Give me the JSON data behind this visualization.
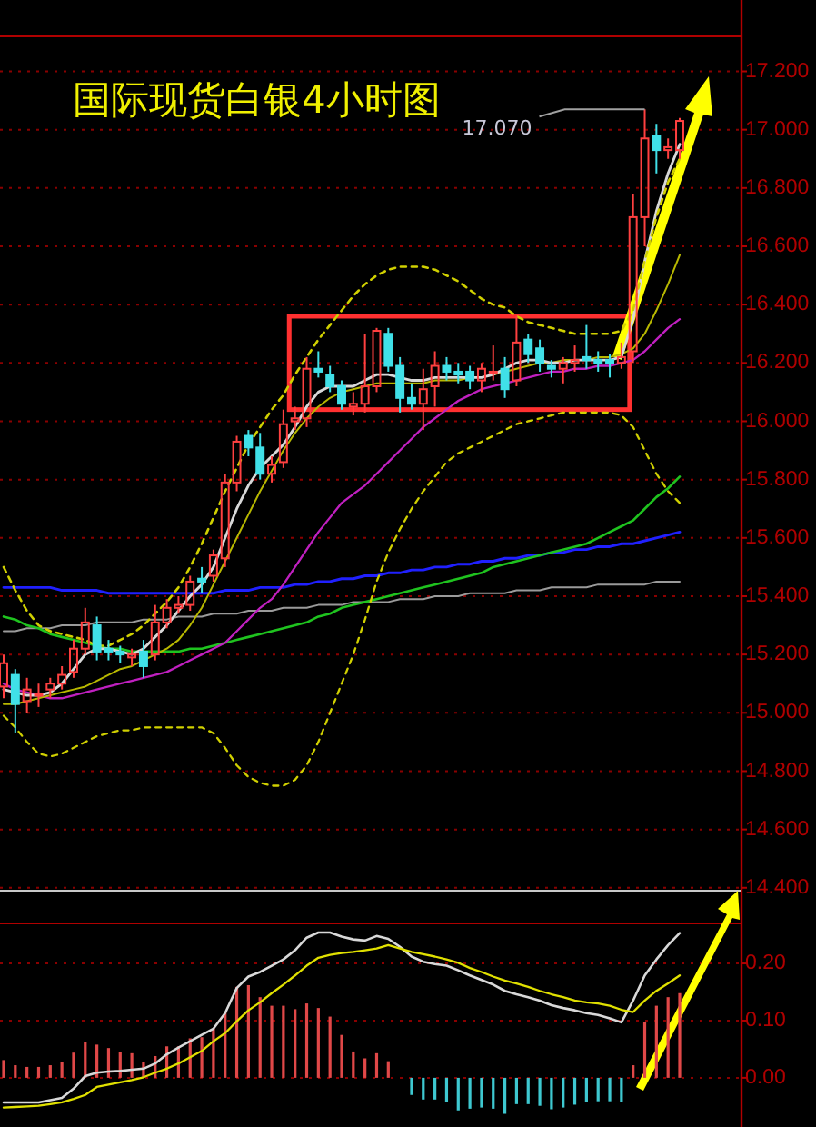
{
  "chart_data": [
    {
      "type": "candlestick",
      "title": "国际现货白银4小时图",
      "categories": [
        null,
        null,
        null,
        null,
        null,
        null,
        null,
        null,
        null,
        null,
        null,
        null,
        null,
        null,
        null,
        null,
        null,
        null,
        null,
        null,
        null,
        null,
        null,
        null,
        null,
        null,
        null,
        null,
        null,
        null,
        null,
        null,
        null,
        null,
        null,
        null,
        null,
        null,
        null,
        null,
        null,
        null,
        null,
        null,
        null,
        null,
        null,
        null,
        null,
        null,
        null,
        null,
        null,
        null,
        null,
        null,
        null,
        null,
        null
      ],
      "ohlc": [
        [
          15.09,
          15.2,
          15.05,
          15.17
        ],
        [
          15.13,
          15.15,
          14.93,
          15.03
        ],
        [
          15.04,
          15.12,
          15.0,
          15.08
        ],
        [
          15.06,
          15.1,
          15.02,
          15.065
        ],
        [
          15.08,
          15.12,
          15.05,
          15.1
        ],
        [
          15.1,
          15.16,
          15.08,
          15.13
        ],
        [
          15.14,
          15.25,
          15.12,
          15.22
        ],
        [
          15.22,
          15.36,
          15.2,
          15.31
        ],
        [
          15.3,
          15.33,
          15.18,
          15.21
        ],
        [
          15.22,
          15.25,
          15.18,
          15.21
        ],
        [
          15.21,
          15.23,
          15.17,
          15.2
        ],
        [
          15.19,
          15.22,
          15.16,
          15.2
        ],
        [
          15.21,
          15.25,
          15.12,
          15.16
        ],
        [
          15.2,
          15.37,
          15.18,
          15.31
        ],
        [
          15.31,
          15.39,
          15.29,
          15.36
        ],
        [
          15.36,
          15.4,
          15.34,
          15.37
        ],
        [
          15.37,
          15.47,
          15.35,
          15.45
        ],
        [
          15.46,
          15.5,
          15.41,
          15.45
        ],
        [
          15.47,
          15.56,
          15.45,
          15.54
        ],
        [
          15.53,
          15.82,
          15.5,
          15.79
        ],
        [
          15.79,
          15.95,
          15.76,
          15.93
        ],
        [
          15.95,
          15.97,
          15.88,
          15.91
        ],
        [
          15.91,
          15.96,
          15.8,
          15.82
        ],
        [
          15.82,
          15.88,
          15.79,
          15.85
        ],
        [
          15.86,
          16.04,
          15.84,
          15.99
        ],
        [
          16.0,
          16.05,
          15.97,
          16.01
        ],
        [
          16.01,
          16.22,
          15.98,
          16.18
        ],
        [
          16.18,
          16.24,
          16.15,
          16.17
        ],
        [
          16.16,
          16.19,
          16.1,
          16.12
        ],
        [
          16.12,
          16.14,
          16.04,
          16.06
        ],
        [
          16.05,
          16.1,
          16.02,
          16.06
        ],
        [
          16.06,
          16.3,
          16.03,
          16.12
        ],
        [
          16.12,
          16.32,
          16.1,
          16.31
        ],
        [
          16.3,
          16.32,
          16.17,
          16.19
        ],
        [
          16.19,
          16.22,
          16.03,
          16.08
        ],
        [
          16.08,
          16.13,
          16.04,
          16.06
        ],
        [
          16.06,
          16.18,
          15.97,
          16.11
        ],
        [
          16.12,
          16.24,
          16.05,
          16.19
        ],
        [
          16.19,
          16.22,
          16.14,
          16.17
        ],
        [
          16.17,
          16.2,
          16.13,
          16.16
        ],
        [
          16.17,
          16.19,
          16.11,
          16.14
        ],
        [
          16.14,
          16.2,
          16.1,
          16.18
        ],
        [
          16.17,
          16.26,
          16.14,
          16.17
        ],
        [
          16.18,
          16.22,
          16.08,
          16.11
        ],
        [
          16.14,
          16.36,
          16.12,
          16.27
        ],
        [
          16.28,
          16.3,
          16.2,
          16.23
        ],
        [
          16.25,
          16.28,
          16.17,
          16.2
        ],
        [
          16.19,
          16.21,
          16.15,
          16.18
        ],
        [
          16.18,
          16.22,
          16.13,
          16.2
        ],
        [
          16.2,
          16.26,
          16.17,
          16.21
        ],
        [
          16.22,
          16.33,
          16.18,
          16.21
        ],
        [
          16.21,
          16.24,
          16.17,
          16.2
        ],
        [
          16.21,
          16.23,
          16.15,
          16.2
        ],
        [
          16.2,
          16.27,
          16.18,
          16.22
        ],
        [
          16.24,
          16.78,
          16.2,
          16.7
        ],
        [
          16.7,
          17.07,
          16.6,
          16.97
        ],
        [
          16.98,
          17.02,
          16.85,
          16.93
        ],
        [
          16.93,
          16.97,
          16.9,
          16.94
        ],
        [
          16.93,
          17.04,
          16.9,
          17.03
        ]
      ],
      "series": [
        {
          "type": "line",
          "color": "#9a9a9a",
          "values": [
            15.28,
            15.28,
            15.29,
            15.29,
            15.29,
            15.3,
            15.3,
            15.3,
            15.31,
            15.31,
            15.31,
            15.31,
            15.32,
            15.32,
            15.32,
            15.33,
            15.33,
            15.33,
            15.34,
            15.34,
            15.34,
            15.35,
            15.35,
            15.35,
            15.36,
            15.36,
            15.36,
            15.37,
            15.37,
            15.37,
            15.38,
            15.38,
            15.38,
            15.38,
            15.39,
            15.39,
            15.39,
            15.4,
            15.4,
            15.4,
            15.41,
            15.41,
            15.41,
            15.41,
            15.42,
            15.42,
            15.42,
            15.43,
            15.43,
            15.43,
            15.43,
            15.44,
            15.44,
            15.44,
            15.44,
            15.44,
            15.45,
            15.45,
            15.45
          ]
        },
        {
          "type": "line",
          "color": "#2020ff",
          "values": [
            15.43,
            15.43,
            15.43,
            15.43,
            15.43,
            15.42,
            15.42,
            15.42,
            15.42,
            15.41,
            15.41,
            15.41,
            15.41,
            15.41,
            15.41,
            15.41,
            15.41,
            15.41,
            15.41,
            15.42,
            15.42,
            15.42,
            15.43,
            15.43,
            15.43,
            15.44,
            15.44,
            15.45,
            15.45,
            15.46,
            15.46,
            15.47,
            15.47,
            15.48,
            15.48,
            15.49,
            15.49,
            15.5,
            15.5,
            15.51,
            15.51,
            15.52,
            15.52,
            15.53,
            15.53,
            15.54,
            15.54,
            15.55,
            15.55,
            15.56,
            15.56,
            15.57,
            15.57,
            15.58,
            15.58,
            15.59,
            15.6,
            15.61,
            15.62
          ]
        },
        {
          "type": "line",
          "color": "#1fc31f",
          "values": [
            15.33,
            15.32,
            15.3,
            15.29,
            15.27,
            15.26,
            15.25,
            15.24,
            15.23,
            15.22,
            15.22,
            15.21,
            15.21,
            15.21,
            15.21,
            15.21,
            15.22,
            15.22,
            15.23,
            15.24,
            15.25,
            15.26,
            15.27,
            15.28,
            15.29,
            15.3,
            15.31,
            15.33,
            15.34,
            15.36,
            15.37,
            15.38,
            15.39,
            15.4,
            15.41,
            15.42,
            15.43,
            15.44,
            15.45,
            15.46,
            15.47,
            15.48,
            15.5,
            15.51,
            15.52,
            15.53,
            15.54,
            15.55,
            15.56,
            15.57,
            15.58,
            15.6,
            15.62,
            15.64,
            15.66,
            15.7,
            15.74,
            15.77,
            15.81
          ]
        },
        {
          "type": "line",
          "color": "#c020c0",
          "values": [
            15.1,
            15.08,
            15.07,
            15.06,
            15.05,
            15.05,
            15.06,
            15.07,
            15.08,
            15.09,
            15.1,
            15.11,
            15.12,
            15.13,
            15.14,
            15.16,
            15.18,
            15.2,
            15.22,
            15.24,
            15.28,
            15.32,
            15.36,
            15.39,
            15.44,
            15.5,
            15.56,
            15.62,
            15.67,
            15.72,
            15.75,
            15.78,
            15.82,
            15.86,
            15.9,
            15.94,
            15.98,
            16.01,
            16.04,
            16.07,
            16.09,
            16.11,
            16.12,
            16.13,
            16.14,
            16.15,
            16.16,
            16.17,
            16.17,
            16.18,
            16.18,
            16.19,
            16.19,
            16.2,
            16.21,
            16.24,
            16.28,
            16.32,
            16.35
          ]
        },
        {
          "type": "line",
          "color": "#b8b800",
          "values": [
            15.03,
            15.03,
            15.04,
            15.05,
            15.06,
            15.07,
            15.08,
            15.09,
            15.11,
            15.13,
            15.15,
            15.16,
            15.18,
            15.2,
            15.22,
            15.25,
            15.3,
            15.36,
            15.44,
            15.52,
            15.6,
            15.68,
            15.76,
            15.83,
            15.9,
            15.96,
            16.01,
            16.05,
            16.08,
            16.1,
            16.11,
            16.12,
            16.13,
            16.13,
            16.13,
            16.13,
            16.13,
            16.14,
            16.14,
            16.14,
            16.15,
            16.15,
            16.16,
            16.17,
            16.18,
            16.19,
            16.2,
            16.2,
            16.21,
            16.21,
            16.21,
            16.22,
            16.22,
            16.23,
            16.25,
            16.3,
            16.38,
            16.47,
            16.57
          ]
        },
        {
          "type": "line",
          "color": "#d8d8d8",
          "values": [
            15.08,
            15.07,
            15.06,
            15.06,
            15.07,
            15.1,
            15.15,
            15.2,
            15.22,
            15.22,
            15.21,
            15.2,
            15.22,
            15.26,
            15.3,
            15.35,
            15.4,
            15.44,
            15.5,
            15.6,
            15.7,
            15.78,
            15.84,
            15.88,
            15.92,
            15.98,
            16.05,
            16.1,
            16.12,
            16.12,
            16.12,
            16.14,
            16.16,
            16.16,
            16.15,
            16.14,
            16.14,
            16.15,
            16.15,
            16.15,
            16.15,
            16.15,
            16.16,
            16.18,
            16.2,
            16.21,
            16.21,
            16.2,
            16.2,
            16.21,
            16.21,
            16.21,
            16.21,
            16.22,
            16.35,
            16.55,
            16.72,
            16.85,
            16.95
          ]
        },
        {
          "type": "line",
          "color": "#d0d000",
          "line_style": "dashed",
          "values": [
            15.5,
            15.42,
            15.35,
            15.3,
            15.28,
            15.27,
            15.26,
            15.25,
            15.23,
            15.23,
            15.25,
            15.27,
            15.3,
            15.34,
            15.38,
            15.43,
            15.5,
            15.58,
            15.67,
            15.76,
            15.84,
            15.92,
            15.98,
            16.04,
            16.09,
            16.16,
            16.22,
            16.28,
            16.33,
            16.38,
            16.43,
            16.47,
            16.5,
            16.52,
            16.53,
            16.53,
            16.53,
            16.52,
            16.5,
            16.48,
            16.45,
            16.42,
            16.4,
            16.39,
            16.36,
            16.34,
            16.33,
            16.32,
            16.31,
            16.3,
            16.3,
            16.3,
            16.3,
            16.31,
            16.38,
            16.55,
            16.7,
            16.82,
            16.9
          ]
        },
        {
          "type": "line",
          "color": "#d0d000",
          "line_style": "dashed",
          "values": [
            14.99,
            14.95,
            14.9,
            14.86,
            14.85,
            14.86,
            14.88,
            14.9,
            14.92,
            14.93,
            14.94,
            14.94,
            14.95,
            14.95,
            14.95,
            14.95,
            14.95,
            14.95,
            14.93,
            14.88,
            14.82,
            14.78,
            14.76,
            14.75,
            14.75,
            14.77,
            14.82,
            14.9,
            15.0,
            15.1,
            15.2,
            15.32,
            15.45,
            15.55,
            15.63,
            15.7,
            15.76,
            15.81,
            15.86,
            15.89,
            15.91,
            15.93,
            15.95,
            15.97,
            15.99,
            16.0,
            16.01,
            16.02,
            16.03,
            16.03,
            16.03,
            16.03,
            16.03,
            16.02,
            15.98,
            15.9,
            15.82,
            15.76,
            15.72
          ]
        }
      ],
      "ylim": [
        14.39,
        17.32
      ],
      "yticks": [
        {
          "value": 14.4,
          "label": "14.400"
        },
        {
          "value": 14.6,
          "label": "14.600"
        },
        {
          "value": 14.8,
          "label": "14.800"
        },
        {
          "value": 15.0,
          "label": "15.000"
        },
        {
          "value": 15.2,
          "label": "15.200"
        },
        {
          "value": 15.4,
          "label": "15.400"
        },
        {
          "value": 15.6,
          "label": "15.600"
        },
        {
          "value": 15.8,
          "label": "15.800"
        },
        {
          "value": 16.0,
          "label": "16.000"
        },
        {
          "value": 16.2,
          "label": "16.200"
        },
        {
          "value": 16.4,
          "label": "16.400"
        },
        {
          "value": 16.6,
          "label": "16.600"
        },
        {
          "value": 16.8,
          "label": "16.800"
        },
        {
          "value": 17.0,
          "label": "17.000"
        },
        {
          "value": 17.2,
          "label": "17.200"
        }
      ],
      "grid": "y",
      "tick_labels": "y",
      "annotations": [
        "17.070"
      ]
    },
    {
      "type": "bar",
      "categories": [
        null,
        null,
        null,
        null,
        null,
        null,
        null,
        null,
        null,
        null,
        null,
        null,
        null,
        null,
        null,
        null,
        null,
        null,
        null,
        null,
        null,
        null,
        null,
        null,
        null,
        null,
        null,
        null,
        null,
        null,
        null,
        null,
        null,
        null,
        null,
        null,
        null,
        null,
        null,
        null,
        null,
        null,
        null,
        null,
        null,
        null,
        null,
        null,
        null,
        null,
        null,
        null,
        null,
        null,
        null,
        null,
        null,
        null,
        null
      ],
      "series": [
        {
          "type": "bar",
          "colors": [
            "#e04848",
            "#e04848",
            "#e04848",
            "#e04848",
            "#e04848",
            "#e04848",
            "#e04848",
            "#e04848",
            "#e04848",
            "#e04848",
            "#e04848",
            "#e04848",
            "#e04848",
            "#e04848",
            "#e04848",
            "#e04848",
            "#e04848",
            "#e04848",
            "#e04848",
            "#e04848",
            "#e04848",
            "#e04848",
            "#e04848",
            "#e04848",
            "#e04848",
            "#e04848",
            "#e04848",
            "#e04848",
            "#e04848",
            "#e04848",
            "#e04848",
            "#e04848",
            "#e04848",
            "#e04848",
            null,
            "#3ec8d0",
            "#3ec8d0",
            "#3ec8d0",
            "#3ec8d0",
            "#3ec8d0",
            "#3ec8d0",
            "#3ec8d0",
            "#3ec8d0",
            "#3ec8d0",
            "#3ec8d0",
            "#3ec8d0",
            "#3ec8d0",
            "#3ec8d0",
            "#3ec8d0",
            "#3ec8d0",
            "#3ec8d0",
            "#3ec8d0",
            "#3ec8d0",
            "#3ec8d0",
            "#e04848",
            "#e04848",
            "#e04848",
            "#e04848",
            "#e04848"
          ],
          "values": [
            0.031,
            0.022,
            0.019,
            0.019,
            0.022,
            0.027,
            0.044,
            0.062,
            0.058,
            0.052,
            0.045,
            0.043,
            0.027,
            0.038,
            0.055,
            0.055,
            0.069,
            0.071,
            0.086,
            0.115,
            0.159,
            0.162,
            0.141,
            0.126,
            0.126,
            0.12,
            0.13,
            0.122,
            0.107,
            0.075,
            0.046,
            0.034,
            0.043,
            0.029,
            null,
            -0.03,
            -0.038,
            -0.038,
            -0.043,
            -0.057,
            -0.054,
            -0.052,
            -0.054,
            -0.063,
            -0.046,
            -0.046,
            -0.049,
            -0.055,
            -0.052,
            -0.047,
            -0.043,
            -0.041,
            -0.041,
            -0.043,
            0.022,
            0.097,
            0.126,
            0.141,
            0.148
          ]
        },
        {
          "type": "line",
          "color": "#d8d8d8",
          "values": [
            -0.043,
            -0.043,
            -0.043,
            -0.043,
            -0.039,
            -0.035,
            -0.019,
            0.003,
            0.009,
            0.011,
            0.012,
            0.014,
            0.016,
            0.025,
            0.041,
            0.053,
            0.064,
            0.075,
            0.086,
            0.113,
            0.157,
            0.177,
            0.185,
            0.196,
            0.207,
            0.223,
            0.245,
            0.254,
            0.254,
            0.247,
            0.242,
            0.24,
            0.248,
            0.243,
            0.229,
            0.212,
            0.203,
            0.199,
            0.196,
            0.188,
            0.179,
            0.171,
            0.163,
            0.152,
            0.146,
            0.141,
            0.135,
            0.127,
            0.122,
            0.118,
            0.113,
            0.11,
            0.104,
            0.097,
            0.135,
            0.179,
            0.207,
            0.232,
            0.253
          ]
        },
        {
          "type": "line",
          "color": "#e0e000",
          "values": [
            -0.052,
            -0.051,
            -0.05,
            -0.049,
            -0.046,
            -0.043,
            -0.037,
            -0.03,
            -0.016,
            -0.012,
            -0.008,
            -0.004,
            0.001,
            0.009,
            0.016,
            0.025,
            0.036,
            0.047,
            0.064,
            0.078,
            0.099,
            0.118,
            0.132,
            0.148,
            0.163,
            0.179,
            0.196,
            0.21,
            0.215,
            0.218,
            0.22,
            0.223,
            0.226,
            0.232,
            0.226,
            0.22,
            0.216,
            0.212,
            0.207,
            0.201,
            0.192,
            0.185,
            0.177,
            0.17,
            0.165,
            0.159,
            0.152,
            0.146,
            0.141,
            0.135,
            0.132,
            0.13,
            0.126,
            0.119,
            0.115,
            0.135,
            0.152,
            0.165,
            0.179
          ]
        }
      ],
      "ylim": [
        -0.086,
        0.27
      ],
      "yticks": [
        {
          "value": 0,
          "label": "0.00"
        },
        {
          "value": 0.1,
          "label": "0.10"
        },
        {
          "value": 0.2,
          "label": "0.20"
        }
      ],
      "grid": "y",
      "tick_labels": "y"
    }
  ]
}
